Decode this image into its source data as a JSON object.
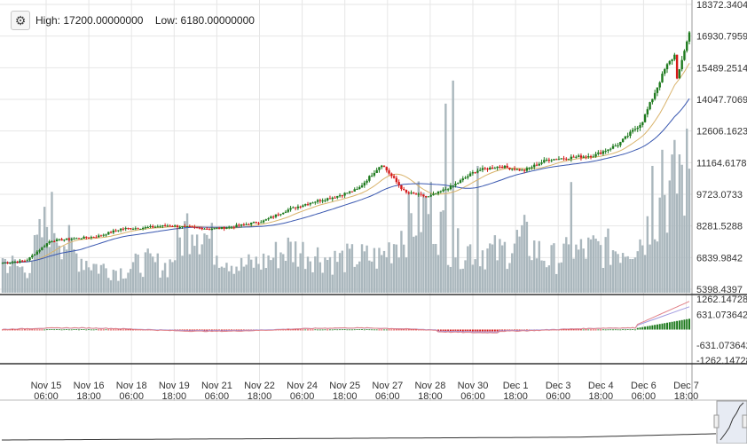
{
  "toolbar": {
    "settings_icon": "gear-icon",
    "high_label": "High:",
    "high_value": "17200.00000000",
    "low_label": "Low:",
    "low_value": "6180.00000000"
  },
  "colors": {
    "up": "#1e7a1e",
    "down": "#d61a1a",
    "volume": "#aab7bd",
    "ma_fast": "#d9b36b",
    "ma_slow": "#3a58b0",
    "macd": "#e07f86",
    "signal": "#a19ae0",
    "grid": "#e6e6e6",
    "axis": "#333333",
    "navigator": "#333333"
  },
  "chart_data": [
    {
      "type": "candlestick",
      "panel": "price",
      "y_axis_ticks": [
        "18372.3404",
        "16930.7959",
        "15489.2514",
        "14047.7069",
        "12606.1623",
        "11164.6178",
        "9723.0733",
        "8281.5288",
        "6839.9842",
        "5398.4397"
      ],
      "ylim": [
        5398.4397,
        18372.3404
      ],
      "x_axis_ticks": [
        {
          "date": "Nov 15",
          "time": "06:00"
        },
        {
          "date": "Nov 16",
          "time": "18:00"
        },
        {
          "date": "Nov 18",
          "time": "06:00"
        },
        {
          "date": "Nov 19",
          "time": "18:00"
        },
        {
          "date": "Nov 21",
          "time": "06:00"
        },
        {
          "date": "Nov 22",
          "time": "18:00"
        },
        {
          "date": "Nov 24",
          "time": "06:00"
        },
        {
          "date": "Nov 25",
          "time": "18:00"
        },
        {
          "date": "Nov 27",
          "time": "06:00"
        },
        {
          "date": "Nov 28",
          "time": "18:00"
        },
        {
          "date": "Nov 30",
          "time": "06:00"
        },
        {
          "date": "Dec 1",
          "time": "18:00"
        },
        {
          "date": "Dec 3",
          "time": "06:00"
        },
        {
          "date": "Dec 4",
          "time": "18:00"
        },
        {
          "date": "Dec 6",
          "time": "06:00"
        },
        {
          "date": "Dec 7",
          "time": "18:00"
        }
      ],
      "close_anchors": [
        6600,
        6700,
        7600,
        7700,
        7800,
        8150,
        8200,
        8300,
        8200,
        8150,
        8300,
        8500,
        9000,
        9350,
        9600,
        9950,
        11100,
        9800,
        9600,
        10100,
        10800,
        11000,
        10800,
        11300,
        11400,
        11500,
        12000,
        13000,
        15500,
        17000
      ],
      "volume_relative": [
        0.15,
        0.1,
        0.35,
        0.18,
        0.12,
        0.1,
        0.14,
        0.12,
        0.35,
        0.2,
        0.12,
        0.14,
        0.2,
        0.18,
        0.15,
        0.16,
        0.16,
        0.3,
        0.4,
        0.2,
        0.2,
        0.18,
        0.25,
        0.15,
        0.18,
        0.2,
        0.2,
        0.25,
        0.45,
        0.55
      ],
      "volume_spikes": [
        0.92,
        0.82,
        0.55,
        0.48,
        0.62,
        0.6,
        0.55
      ],
      "moving_averages": [
        "ma_fast",
        "ma_slow"
      ]
    },
    {
      "type": "macd",
      "panel": "indicator",
      "y_axis_ticks": [
        "1262.147285",
        "631.0736427",
        "0",
        "-631.073642",
        "-1262.14728"
      ],
      "ylim": [
        -1262.14728,
        1262.147285
      ]
    },
    {
      "type": "area",
      "panel": "navigator"
    }
  ]
}
